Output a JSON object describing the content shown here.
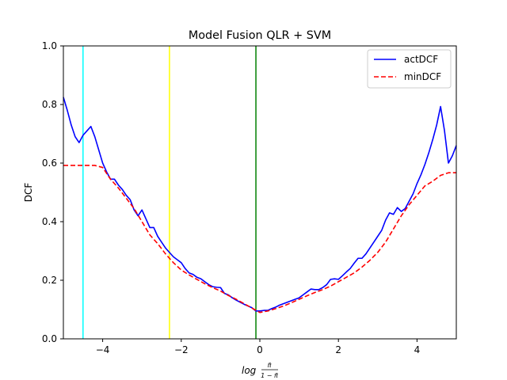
{
  "chart_data": {
    "type": "line",
    "title": "Model Fusion QLR + SVM",
    "xlabel_main": "log",
    "xlabel_frac_num": "π̃",
    "xlabel_frac_den": "1 − π̃",
    "ylabel": "DCF",
    "xlim": [
      -5,
      5
    ],
    "ylim": [
      0,
      1.0
    ],
    "xticks": [
      -4,
      -2,
      0,
      2,
      4
    ],
    "xtick_labels": [
      "−4",
      "−2",
      "0",
      "2",
      "4"
    ],
    "yticks": [
      0.0,
      0.2,
      0.4,
      0.6,
      0.8,
      1.0
    ],
    "ytick_labels": [
      "0.0",
      "0.2",
      "0.4",
      "0.6",
      "0.8",
      "1.0"
    ],
    "grid": false,
    "legend_position": "upper-right",
    "vertical_lines": [
      {
        "x": -4.5,
        "color": "#00ffff"
      },
      {
        "x": -2.3,
        "color": "#ffff00"
      },
      {
        "x": -0.1,
        "color": "#008000"
      }
    ],
    "series": [
      {
        "name": "actDCF",
        "color": "#0000ff",
        "style": "solid",
        "x": [
          -5.0,
          -4.9,
          -4.8,
          -4.7,
          -4.6,
          -4.5,
          -4.4,
          -4.3,
          -4.2,
          -4.1,
          -4.0,
          -3.9,
          -3.8,
          -3.7,
          -3.6,
          -3.5,
          -3.4,
          -3.3,
          -3.2,
          -3.1,
          -3.0,
          -2.9,
          -2.8,
          -2.7,
          -2.6,
          -2.5,
          -2.4,
          -2.3,
          -2.2,
          -2.1,
          -2.0,
          -1.9,
          -1.8,
          -1.7,
          -1.6,
          -1.5,
          -1.4,
          -1.3,
          -1.2,
          -1.1,
          -1.0,
          -0.9,
          -0.8,
          -0.7,
          -0.6,
          -0.5,
          -0.4,
          -0.3,
          -0.2,
          -0.1,
          0.0,
          0.1,
          0.2,
          0.3,
          0.4,
          0.5,
          0.6,
          0.7,
          0.8,
          0.9,
          1.0,
          1.1,
          1.2,
          1.3,
          1.4,
          1.5,
          1.6,
          1.7,
          1.8,
          1.9,
          2.0,
          2.1,
          2.2,
          2.3,
          2.4,
          2.5,
          2.6,
          2.7,
          2.8,
          2.9,
          3.0,
          3.1,
          3.2,
          3.3,
          3.4,
          3.5,
          3.6,
          3.7,
          3.8,
          3.9,
          4.0,
          4.1,
          4.2,
          4.3,
          4.4,
          4.5,
          4.6,
          4.7,
          4.8,
          4.9,
          5.0
        ],
        "values": [
          0.825,
          0.78,
          0.73,
          0.69,
          0.67,
          0.695,
          0.71,
          0.725,
          0.69,
          0.645,
          0.6,
          0.57,
          0.545,
          0.545,
          0.525,
          0.51,
          0.49,
          0.475,
          0.44,
          0.42,
          0.44,
          0.41,
          0.38,
          0.38,
          0.35,
          0.33,
          0.31,
          0.295,
          0.28,
          0.27,
          0.26,
          0.24,
          0.225,
          0.22,
          0.21,
          0.205,
          0.195,
          0.185,
          0.178,
          0.176,
          0.175,
          0.155,
          0.15,
          0.14,
          0.132,
          0.125,
          0.118,
          0.112,
          0.106,
          0.095,
          0.095,
          0.097,
          0.097,
          0.103,
          0.108,
          0.115,
          0.12,
          0.125,
          0.13,
          0.135,
          0.14,
          0.15,
          0.16,
          0.17,
          0.168,
          0.168,
          0.175,
          0.185,
          0.203,
          0.205,
          0.203,
          0.215,
          0.228,
          0.24,
          0.258,
          0.275,
          0.275,
          0.29,
          0.31,
          0.33,
          0.35,
          0.37,
          0.405,
          0.43,
          0.425,
          0.448,
          0.435,
          0.445,
          0.47,
          0.495,
          0.53,
          0.56,
          0.595,
          0.635,
          0.68,
          0.73,
          0.793,
          0.71,
          0.6,
          0.625,
          0.66
        ]
      },
      {
        "name": "minDCF",
        "color": "#ff0000",
        "style": "dashed",
        "x": [
          -5.0,
          -4.8,
          -4.6,
          -4.4,
          -4.2,
          -4.0,
          -3.8,
          -3.6,
          -3.4,
          -3.2,
          -3.0,
          -2.8,
          -2.6,
          -2.4,
          -2.2,
          -2.0,
          -1.8,
          -1.6,
          -1.4,
          -1.2,
          -1.0,
          -0.8,
          -0.6,
          -0.4,
          -0.2,
          0.0,
          0.2,
          0.4,
          0.6,
          0.8,
          1.0,
          1.2,
          1.4,
          1.6,
          1.8,
          2.0,
          2.2,
          2.4,
          2.6,
          2.8,
          3.0,
          3.2,
          3.4,
          3.6,
          3.8,
          4.0,
          4.2,
          4.4,
          4.6,
          4.8,
          5.0
        ],
        "values": [
          0.592,
          0.592,
          0.592,
          0.592,
          0.592,
          0.585,
          0.545,
          0.515,
          0.48,
          0.445,
          0.4,
          0.355,
          0.325,
          0.29,
          0.26,
          0.235,
          0.218,
          0.203,
          0.188,
          0.175,
          0.163,
          0.148,
          0.135,
          0.12,
          0.105,
          0.09,
          0.095,
          0.103,
          0.112,
          0.123,
          0.135,
          0.147,
          0.158,
          0.168,
          0.18,
          0.195,
          0.21,
          0.225,
          0.245,
          0.268,
          0.295,
          0.33,
          0.375,
          0.42,
          0.458,
          0.49,
          0.522,
          0.538,
          0.558,
          0.567,
          0.567
        ]
      }
    ]
  }
}
